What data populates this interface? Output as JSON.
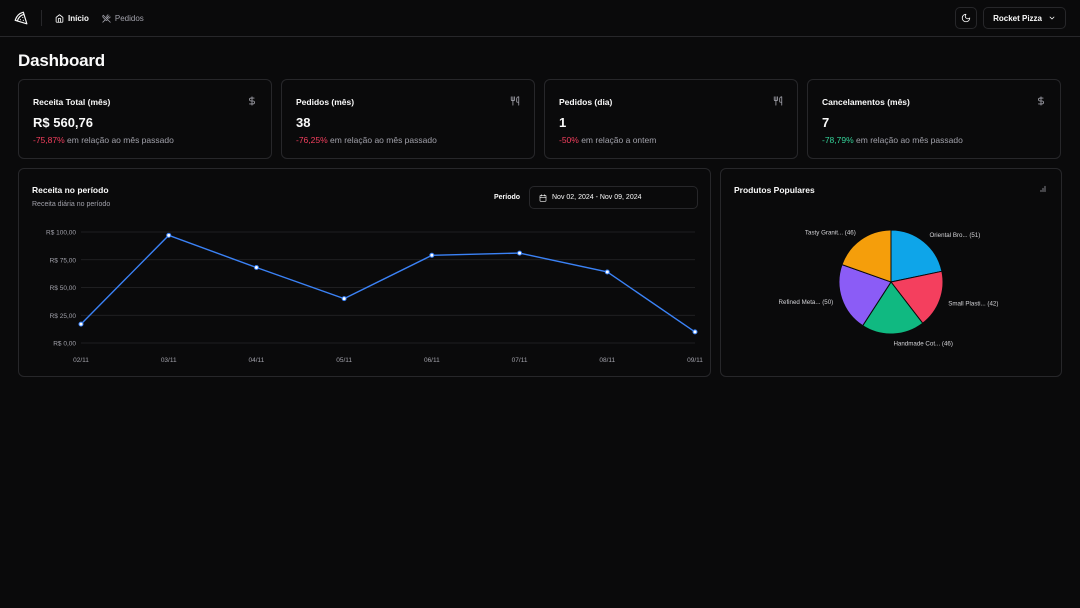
{
  "nav": {
    "items": [
      {
        "label": "Início"
      },
      {
        "label": "Pedidos"
      }
    ]
  },
  "header": {
    "store_name": "Rocket Pizza"
  },
  "page": {
    "title": "Dashboard"
  },
  "kpis": [
    {
      "title": "Receita Total (mês)",
      "value": "R$ 560,76",
      "delta": "-75,87%",
      "delta_text": " em relação ao mês passado",
      "icon": "dollar-icon"
    },
    {
      "title": "Pedidos (mês)",
      "value": "38",
      "delta": "-76,25%",
      "delta_text": " em relação ao mês passado",
      "icon": "utensils-icon"
    },
    {
      "title": "Pedidos (dia)",
      "value": "1",
      "delta": "-50%",
      "delta_text": " em relação a ontem",
      "icon": "utensils-icon"
    },
    {
      "title": "Cancelamentos (mês)",
      "value": "7",
      "delta": "-78,79%",
      "delta_text": " em relação ao mês passado",
      "icon": "dollar-icon"
    }
  ],
  "revenue": {
    "title": "Receita no período",
    "subtitle": "Receita diária no período",
    "period_label": "Período",
    "period_value": "Nov 02, 2024 - Nov 09, 2024"
  },
  "popular": {
    "title": "Produtos Populares"
  },
  "colors": {
    "line": "#3b82f6",
    "negative": "#f43f5e",
    "positive": "#34d399"
  },
  "chart_data": [
    {
      "type": "line",
      "x": [
        "02/11",
        "03/11",
        "04/11",
        "05/11",
        "06/11",
        "07/11",
        "08/11",
        "09/11"
      ],
      "series": [
        {
          "values": [
            17,
            97,
            68,
            40,
            79,
            81,
            64,
            10
          ]
        }
      ],
      "yticks": [
        "R$ 0,00",
        "R$ 25,00",
        "R$ 50,00",
        "R$ 75,00",
        "R$ 100,00"
      ],
      "ylim": [
        0,
        100
      ],
      "grid": true
    },
    {
      "type": "pie",
      "slices": [
        {
          "label": "Oriental Bro... (51)",
          "value": 51,
          "color": "#0ea5e9"
        },
        {
          "label": "Small Plasti... (42)",
          "value": 42,
          "color": "#f43f5e"
        },
        {
          "label": "Handmade Cot... (46)",
          "value": 46,
          "color": "#10b981"
        },
        {
          "label": "Refined Meta... (50)",
          "value": 50,
          "color": "#8b5cf6"
        },
        {
          "label": "Tasty Granit... (46)",
          "value": 46,
          "color": "#f59e0b"
        }
      ]
    }
  ]
}
